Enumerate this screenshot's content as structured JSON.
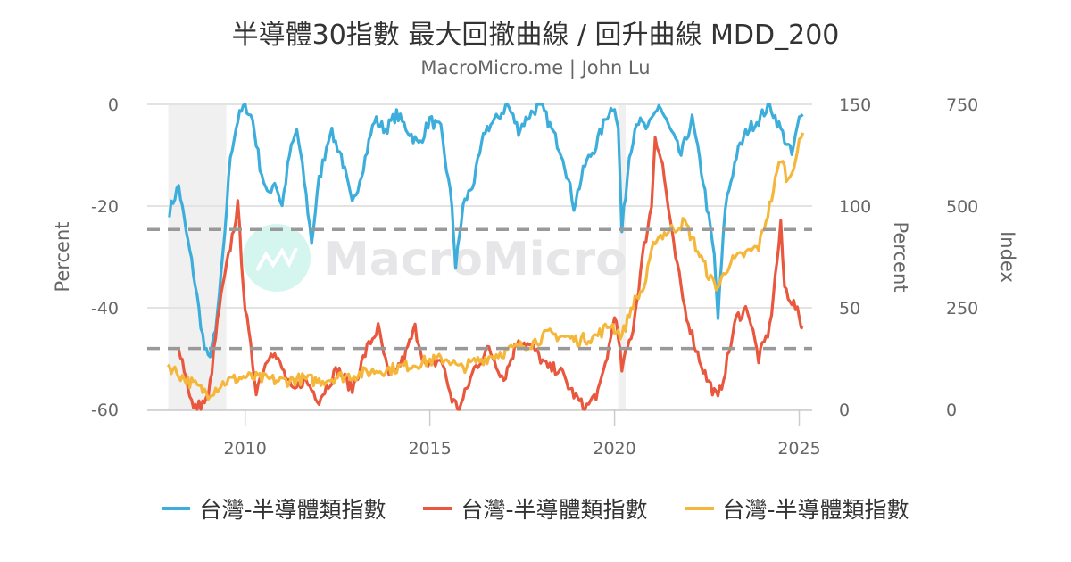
{
  "title": "半導體30指數 最大回撤曲線 / 回升曲線 MDD_200",
  "subtitle": "MacroMicro.me | John Lu",
  "watermark": "MacroMicro",
  "chart_data": {
    "type": "line",
    "grid": "horizontal",
    "legend_position": "bottom",
    "x_axis": {
      "range": [
        2007.35,
        2025.35
      ],
      "ticks": [
        2010,
        2015,
        2020,
        2025
      ],
      "tick_labels": [
        "2010",
        "2015",
        "2020",
        "2025"
      ]
    },
    "y_axes": [
      {
        "id": "left",
        "label": "Percent",
        "range": [
          -60,
          0
        ],
        "ticks": [
          0,
          -20,
          -40,
          -60
        ],
        "tick_labels": [
          "0",
          "-20",
          "-40",
          "-60"
        ]
      },
      {
        "id": "right1",
        "label": "Percent",
        "range": [
          0,
          150
        ],
        "ticks": [
          150,
          100,
          50,
          0
        ],
        "tick_labels": [
          "150",
          "100",
          "50",
          "0"
        ]
      },
      {
        "id": "right2",
        "label": "Index",
        "range": [
          0,
          750
        ],
        "ticks": [
          750,
          500,
          250,
          0
        ],
        "tick_labels": [
          "750",
          "500",
          "250",
          "0"
        ]
      }
    ],
    "shaded_ranges": [
      [
        2007.92,
        2009.49
      ],
      [
        2020.1,
        2020.3
      ]
    ],
    "reference_lines": {
      "axis": "right1",
      "values": [
        88.5,
        30
      ]
    },
    "series": [
      {
        "name": "台灣-半導體類指數",
        "axis": "left",
        "color": "#3daedb",
        "x": [
          2007.95,
          2008.2,
          2008.4,
          2008.6,
          2008.8,
          2008.9,
          2009.0,
          2009.2,
          2009.4,
          2009.6,
          2009.8,
          2010.0,
          2010.2,
          2010.4,
          2010.6,
          2010.8,
          2011.0,
          2011.2,
          2011.4,
          2011.6,
          2011.8,
          2012.0,
          2012.3,
          2012.6,
          2012.9,
          2013.2,
          2013.5,
          2013.8,
          2014.1,
          2014.4,
          2014.7,
          2015.0,
          2015.3,
          2015.6,
          2015.7,
          2015.9,
          2016.2,
          2016.5,
          2016.8,
          2017.1,
          2017.4,
          2017.7,
          2018.0,
          2018.3,
          2018.6,
          2018.9,
          2019.2,
          2019.5,
          2019.8,
          2020.0,
          2020.1,
          2020.2,
          2020.4,
          2020.6,
          2020.9,
          2021.2,
          2021.5,
          2021.8,
          2022.1,
          2022.4,
          2022.7,
          2022.8,
          2023.0,
          2023.3,
          2023.6,
          2023.9,
          2024.2,
          2024.5,
          2024.8,
          2025.0,
          2025.1
        ],
        "values": [
          -21,
          -16,
          -25,
          -33,
          -43,
          -48,
          -50,
          -45,
          -30,
          -10,
          -3,
          0,
          -3,
          -12,
          -18,
          -15,
          -20,
          -10,
          -5,
          -15,
          -27,
          -15,
          -5,
          -10,
          -20,
          -12,
          -3,
          -5,
          -2,
          -5,
          -8,
          -3,
          -5,
          -20,
          -32,
          -20,
          -15,
          -5,
          -3,
          0,
          -5,
          -2,
          0,
          -5,
          -10,
          -20,
          -12,
          -8,
          -2,
          0,
          -5,
          -25,
          -10,
          -3,
          -5,
          0,
          -5,
          -10,
          -3,
          -15,
          -30,
          -42,
          -20,
          -10,
          -5,
          -3,
          0,
          -5,
          -10,
          -3,
          -2
        ]
      },
      {
        "name": "台灣-半導體類指數",
        "axis": "right1",
        "color": "#e9573e",
        "x": [
          2008.2,
          2008.6,
          2009.0,
          2009.3,
          2009.6,
          2009.8,
          2010.0,
          2010.3,
          2010.7,
          2011.0,
          2011.3,
          2011.6,
          2012.0,
          2012.5,
          2012.9,
          2013.3,
          2013.6,
          2013.9,
          2014.3,
          2014.6,
          2014.9,
          2015.3,
          2015.6,
          2015.8,
          2016.2,
          2016.6,
          2017.0,
          2017.4,
          2017.8,
          2018.2,
          2018.5,
          2018.8,
          2019.2,
          2019.6,
          2019.9,
          2020.0,
          2020.2,
          2020.5,
          2020.8,
          2021.0,
          2021.1,
          2021.3,
          2021.6,
          2021.9,
          2022.2,
          2022.5,
          2022.8,
          2023.0,
          2023.3,
          2023.6,
          2023.9,
          2024.2,
          2024.5,
          2024.6,
          2024.9,
          2025.1
        ],
        "values": [
          32,
          0,
          5,
          50,
          80,
          100,
          50,
          10,
          30,
          20,
          8,
          15,
          5,
          20,
          10,
          30,
          40,
          15,
          25,
          40,
          20,
          25,
          5,
          0,
          20,
          30,
          15,
          35,
          30,
          20,
          20,
          10,
          0,
          10,
          35,
          48,
          20,
          40,
          80,
          100,
          135,
          120,
          80,
          50,
          30,
          15,
          5,
          20,
          45,
          50,
          25,
          40,
          90,
          60,
          50,
          40
        ]
      },
      {
        "name": "台灣-半導體類指數",
        "axis": "right2",
        "color": "#f5b73b",
        "x": [
          2007.9,
          2008.3,
          2008.8,
          2009.0,
          2009.5,
          2010.0,
          2010.5,
          2011.0,
          2011.5,
          2012.0,
          2012.5,
          2013.0,
          2013.5,
          2014.0,
          2014.5,
          2015.0,
          2015.5,
          2015.8,
          2016.3,
          2016.8,
          2017.3,
          2017.8,
          2018.2,
          2018.6,
          2019.0,
          2019.5,
          2019.9,
          2020.2,
          2020.5,
          2020.8,
          2021.1,
          2021.5,
          2021.9,
          2022.2,
          2022.6,
          2022.8,
          2023.1,
          2023.5,
          2023.9,
          2024.2,
          2024.5,
          2024.7,
          2025.0,
          2025.1
        ],
        "values": [
          110,
          80,
          50,
          40,
          70,
          80,
          75,
          70,
          75,
          70,
          80,
          85,
          95,
          100,
          110,
          120,
          125,
          100,
          120,
          135,
          150,
          165,
          185,
          180,
          170,
          180,
          210,
          180,
          260,
          300,
          420,
          440,
          460,
          400,
          320,
          300,
          360,
          380,
          400,
          500,
          620,
          560,
          650,
          680
        ]
      }
    ]
  }
}
